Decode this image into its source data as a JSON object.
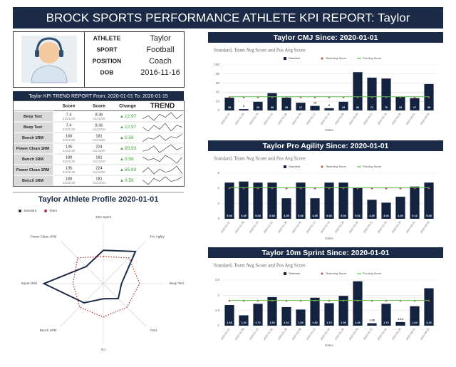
{
  "header": {
    "title": "BROCK SPORTS PERFORMANCE ATHLETE KPI REPORT: Taylor"
  },
  "profile": {
    "rows": [
      [
        "ATHLETE",
        "Taylor"
      ],
      [
        "SPORT",
        "Football"
      ],
      [
        "POSITION",
        "Coach"
      ],
      [
        "DOB",
        "2016-11-16"
      ]
    ]
  },
  "kpi_table": {
    "title": "Taylor KPI TREND REPORT From: 2020-01-01 To: 2020-01-15",
    "columns": [
      "Score",
      "Score",
      "Change",
      "TREND"
    ],
    "rows": [
      {
        "test": "Beep Test",
        "score1": 7.4,
        "date1": "01/01/20",
        "score2": 8.36,
        "date2": "01/15/20",
        "change": 12.97,
        "trend": [
          5,
          7,
          4,
          8,
          6,
          9,
          5,
          8
        ]
      },
      {
        "test": "Beep Test",
        "score1": 7.4,
        "date1": "01/01/20",
        "score2": 8.36,
        "date2": "01/15/20",
        "change": 12.97,
        "trend": [
          6,
          4,
          7,
          5,
          8,
          4,
          7,
          6
        ]
      },
      {
        "test": "Bench 1RM",
        "score1": 180,
        "date1": "01/01/20",
        "score2": 181,
        "date2": "01/15/20",
        "change": 0.56,
        "trend": [
          3,
          6,
          5,
          8,
          4,
          7,
          6,
          9
        ]
      },
      {
        "test": "Power Clean 1RM",
        "score1": 135,
        "date1": "01/01/20",
        "score2": 224,
        "date2": "01/15/20",
        "change": 65.93,
        "trend": [
          4,
          5,
          8,
          3,
          6,
          9,
          5,
          7
        ]
      },
      {
        "test": "Bench 1RM",
        "score1": 180,
        "date1": "01/01/20",
        "score2": 181,
        "date2": "01/15/20",
        "change": 0.56,
        "trend": [
          7,
          5,
          6,
          4,
          8,
          6,
          3,
          7
        ]
      },
      {
        "test": "Power Clean 1RM",
        "score1": 135,
        "date1": "01/01/20",
        "score2": 224,
        "date2": "01/15/20",
        "change": 65.93,
        "trend": [
          5,
          8,
          4,
          7,
          5,
          6,
          9,
          4
        ]
      },
      {
        "test": "Bench 1RM",
        "score1": 180,
        "date1": "01/01/20",
        "score2": 181,
        "date2": "01/15/20",
        "change": 0.56,
        "trend": [
          6,
          3,
          7,
          5,
          8,
          5,
          6,
          8
        ]
      }
    ]
  },
  "chart_data": [
    {
      "type": "radar",
      "title": "Taylor Athlete Profile 2020-01-01",
      "categories": [
        "10m Sprint",
        "Pro Agility",
        "Beep Test",
        "CMJ",
        "RJ",
        "Bench 1RM",
        "Squat 1RM",
        "Power Clean 1RM"
      ],
      "ylim": [
        0,
        100
      ],
      "series": [
        {
          "name": "Standard",
          "color": "#1b2a47",
          "dashed": false,
          "values": [
            55,
            75,
            30,
            35,
            25,
            45,
            98,
            40
          ]
        },
        {
          "name": "Team",
          "color": "#b03a3a",
          "dashed": true,
          "values": [
            45,
            60,
            60,
            55,
            55,
            55,
            50,
            60
          ]
        }
      ]
    },
    {
      "type": "bar",
      "title": "Taylor CMJ Since: 2020-01-01",
      "subtitle": "Standard, Team Avg Score and Pos Avg Score",
      "x_label": "Dates",
      "categories": [
        "2020-01-01",
        "2020-01-08",
        "2020-01-15",
        "2020-01-22",
        "2020-01-29",
        "2020-02-05",
        "2020-02-12",
        "2020-02-19",
        "2020-02-26",
        "2020-03-04",
        "2020-03-11",
        "2020-03-18",
        "2020-03-25",
        "2020-04-01",
        "2020-04-08"
      ],
      "ylim": [
        0,
        100
      ],
      "yticks": [
        0,
        20,
        40,
        60,
        80,
        100
      ],
      "grid": true,
      "series": [
        {
          "name": "Standard",
          "color": "#13223f",
          "mark": "bar",
          "values": [
            28,
            3,
            19,
            38,
            28,
            17,
            10,
            5,
            19,
            84,
            72,
            70,
            30,
            27,
            58
          ]
        },
        {
          "name": "Team Avg Score",
          "color": "#c0504d",
          "mark": "point",
          "values": [
            29,
            29,
            29,
            29,
            29,
            29,
            29,
            29,
            29,
            29,
            29,
            29,
            29,
            29,
            29
          ]
        },
        {
          "name": "Pos Avg Score",
          "color": "#5cc14a",
          "mark": "line",
          "values": [
            30,
            30,
            30,
            30,
            30,
            30,
            30,
            30,
            30,
            30,
            30,
            30,
            30,
            30,
            30
          ]
        }
      ]
    },
    {
      "type": "bar",
      "title": "Taylor Pro Agility Since: 2020-01-01",
      "subtitle": "Standard, Team Avg Score and Pos Avg Score",
      "x_label": "Dates",
      "categories": [
        "2020-01-01",
        "2020-01-08",
        "2020-01-15",
        "2020-01-22",
        "2020-01-29",
        "2020-02-05",
        "2020-02-12",
        "2020-02-19",
        "2020-02-26",
        "2020-03-04",
        "2020-03-11",
        "2020-03-18",
        "2020-03-25",
        "2020-04-01",
        "2020-04-08"
      ],
      "ylim": [
        3,
        6
      ],
      "yticks": [
        3,
        4,
        5,
        6
      ],
      "grid": true,
      "series": [
        {
          "name": "Standard",
          "color": "#13223f",
          "mark": "bar",
          "values": [
            5.38,
            5.45,
            5.38,
            5.38,
            4.35,
            5.38,
            4.35,
            5.38,
            5.38,
            5.02,
            4.25,
            4.06,
            4.45,
            5.12,
            5.38
          ]
        },
        {
          "name": "Team Avg Score",
          "color": "#c0504d",
          "mark": "point",
          "values": [
            5,
            5,
            5,
            5,
            5,
            5,
            5,
            5,
            5,
            5,
            5,
            5,
            5,
            5,
            5
          ]
        },
        {
          "name": "Pos Avg Score",
          "color": "#5cc14a",
          "mark": "line",
          "values": [
            5.05,
            5.05,
            5.05,
            5.05,
            5.05,
            5.05,
            5.05,
            5.05,
            5.05,
            5.05,
            5.05,
            5.05,
            5.05,
            5.05,
            5.05
          ]
        }
      ]
    },
    {
      "type": "bar",
      "title": "Taylor 10m Sprint Since: 2020-01-01",
      "subtitle": "Standard, Team Avg Score and Pos Avg Score",
      "x_label": "Dates",
      "categories": [
        "2020-01-01",
        "2020-01-08",
        "2020-01-15",
        "2020-01-22",
        "2020-01-29",
        "2020-02-05",
        "2020-02-12",
        "2020-02-19",
        "2020-02-26",
        "2020-03-04",
        "2020-03-11",
        "2020-03-18",
        "2020-03-25",
        "2020-04-01",
        "2020-04-08"
      ],
      "ylim": [
        1,
        2.5
      ],
      "yticks": [
        1,
        1.5,
        2,
        2.5
      ],
      "grid": true,
      "series": [
        {
          "name": "Standard",
          "color": "#13223f",
          "mark": "bar",
          "values": [
            1.68,
            1.34,
            1.72,
            1.94,
            1.61,
            1.53,
            1.92,
            1.74,
            1.98,
            2.46,
            1.08,
            1.72,
            1.12,
            1.64,
            2.23
          ]
        },
        {
          "name": "Team Avg Score",
          "color": "#c0504d",
          "mark": "point",
          "values": [
            1.82,
            1.82,
            1.82,
            1.82,
            1.82,
            1.82,
            1.82,
            1.82,
            1.82,
            1.82,
            1.82,
            1.82,
            1.82,
            1.82,
            1.82
          ]
        },
        {
          "name": "Pos Avg Score",
          "color": "#5cc14a",
          "mark": "line",
          "values": [
            1.83,
            1.83,
            1.83,
            1.83,
            1.83,
            1.83,
            1.83,
            1.83,
            1.83,
            1.83,
            1.83,
            1.83,
            1.83,
            1.83,
            1.83
          ]
        }
      ]
    }
  ]
}
